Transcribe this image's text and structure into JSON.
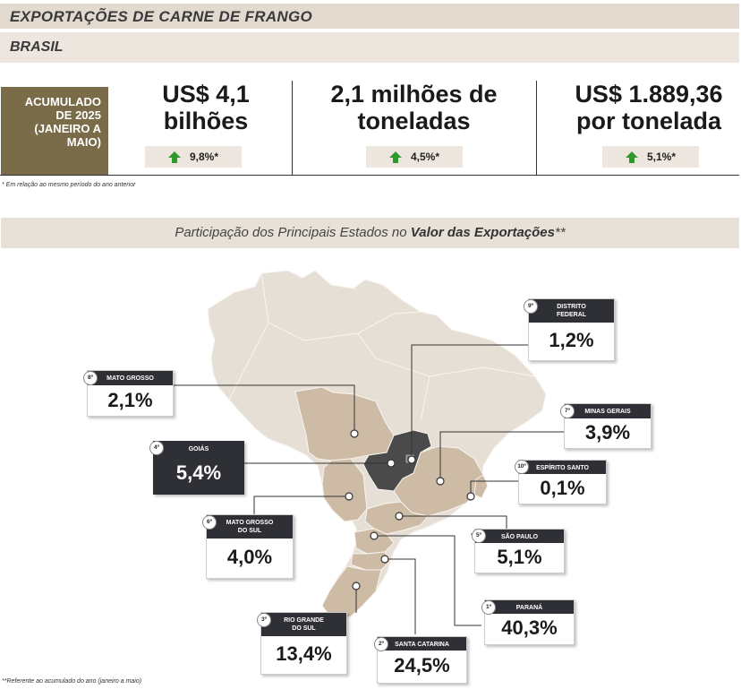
{
  "header": {
    "title": "EXPORTAÇÕES DE CARNE DE FRANGO",
    "subtitle": "BRASIL"
  },
  "period": {
    "line1": "ACUMULADO",
    "line2": "DE 2025",
    "line3": "(JANEIRO A",
    "line4": "MAIO)"
  },
  "metrics": [
    {
      "line1": "US$ 4,1",
      "line2": "bilhões",
      "change": "9,8%*"
    },
    {
      "line1": "2,1 milhões de",
      "line2": "toneladas",
      "change": "4,5%*"
    },
    {
      "line1": "US$ 1.889,36",
      "line2": "por tonelada",
      "change": "5,1%*"
    }
  ],
  "footnote": "* Em relação ao mesmo período do ano anterior",
  "section": {
    "prefix": "Participação dos Principais Estados no ",
    "bold": "Valor das Exportações",
    "suffix": "**"
  },
  "states": {
    "distrito_federal": {
      "rank": "9º",
      "line1": "DISTRITO",
      "line2": "FEDERAL",
      "value": "1,2%"
    },
    "mato_grosso": {
      "rank": "8º",
      "line1": "MATO GROSSO",
      "value": "2,1%"
    },
    "minas_gerais": {
      "rank": "7º",
      "line1": "MINAS GERAIS",
      "value": "3,9%"
    },
    "goias": {
      "rank": "4º",
      "line1": "GOIÁS",
      "value": "5,4%"
    },
    "espirito_santo": {
      "rank": "10º",
      "line1": "ESPÍRITO SANTO",
      "value": "0,1%"
    },
    "mato_grosso_sul": {
      "rank": "6º",
      "line1": "MATO GROSSO",
      "line2": "DO SUL",
      "value": "4,0%"
    },
    "sao_paulo": {
      "rank": "5º",
      "line1": "SÃO PAULO",
      "value": "5,1%"
    },
    "parana": {
      "rank": "1º",
      "line1": "PARANÁ",
      "value": "40,3%"
    },
    "rio_grande_sul": {
      "rank": "3º",
      "line1": "RIO GRANDE",
      "line2": "DO SUL",
      "value": "13,4%"
    },
    "santa_catarina": {
      "rank": "2º",
      "line1": "SANTA CATARINA",
      "value": "24,5%"
    }
  },
  "map_footnote": "**Referente ao acumulado do ano (janeiro a maio)",
  "colors": {
    "map_base": "#e6dfd6",
    "highlight": "#cdbba6",
    "goias": "#4a4a4a",
    "accent_olive": "#7b6c49",
    "up_arrow": "#2e9a2e"
  }
}
